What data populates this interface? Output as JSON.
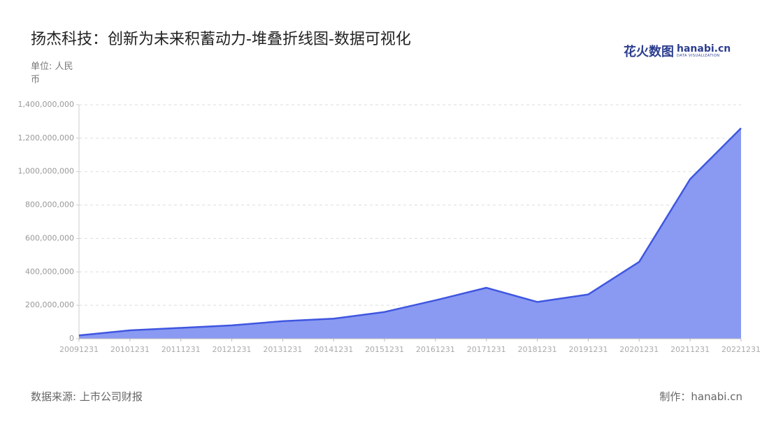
{
  "chart_data": {
    "type": "area",
    "title": "扬杰科技：创新为未来积蓄动力-堆叠折线图-数据可视化",
    "unit_label": "单位: 人民币",
    "source": "数据来源: 上市公司财报",
    "credit": "制作：hanabi.cn",
    "logo": {
      "cn": "花火数图",
      "en": "hanabi.cn",
      "sub": "DATA VISUALIZATION"
    },
    "categories": [
      "20091231",
      "20101231",
      "20111231",
      "20121231",
      "20131231",
      "20141231",
      "20151231",
      "20161231",
      "20171231",
      "20181231",
      "20191231",
      "20201231",
      "20211231",
      "20221231"
    ],
    "values": [
      20000000,
      50000000,
      65000000,
      80000000,
      105000000,
      120000000,
      160000000,
      230000000,
      305000000,
      220000000,
      265000000,
      460000000,
      955000000,
      1260000000
    ],
    "color": "#3f56e0",
    "fill": "#8a9af2",
    "ylim": [
      0,
      1400000000
    ],
    "yticks": [
      0,
      {
        "value": 200000000,
        "label": "200,000,000"
      },
      {
        "value": 400000000,
        "label": "400,000,000"
      },
      {
        "value": 600000000,
        "label": "600,000,000"
      },
      {
        "value": 800000000,
        "label": "800,000,000"
      },
      {
        "value": 1000000000,
        "label": "1,000,000,000"
      },
      {
        "value": 1200000000,
        "label": "1,200,000,000"
      },
      {
        "value": 1400000000,
        "label": "1,400,000,000"
      }
    ],
    "grid": true
  }
}
